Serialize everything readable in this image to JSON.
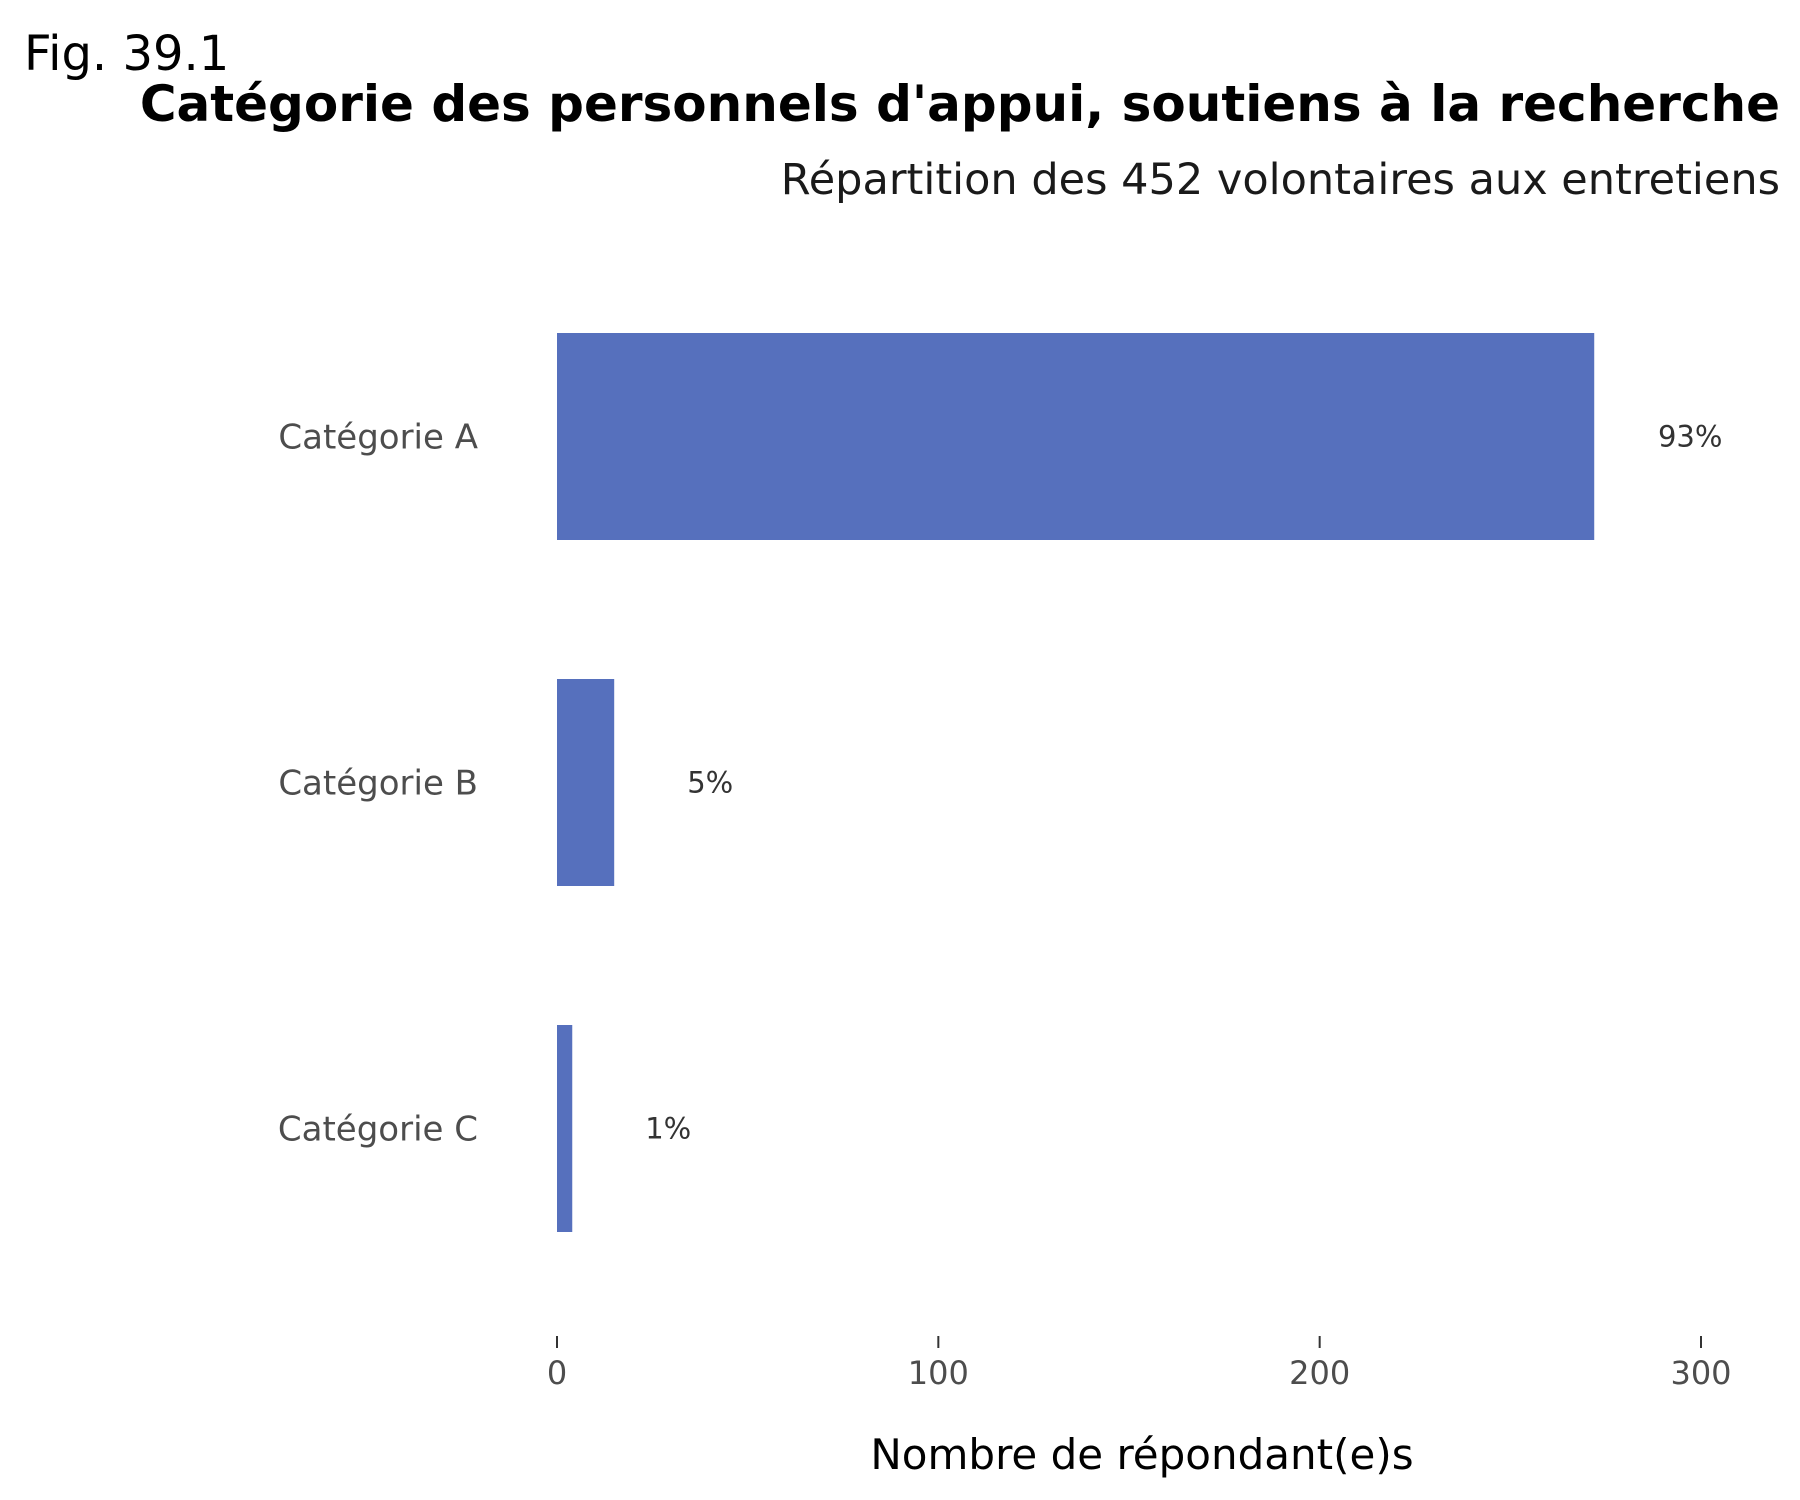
{
  "figure_label": "Fig. 39.1",
  "chart_data": {
    "type": "bar",
    "orientation": "horizontal",
    "title": "Catégorie des personnels d'appui, soutiens à la recherche",
    "subtitle": "Répartition des 452 volontaires aux entretiens",
    "xlabel": "Nombre de répondant(e)s",
    "ylabel": "",
    "categories": [
      "Catégorie A",
      "Catégorie B",
      "Catégorie C"
    ],
    "values": [
      272,
      15,
      4
    ],
    "data_labels": [
      "93%",
      "5%",
      "1%"
    ],
    "xlim": [
      0,
      300
    ],
    "xticks": [
      0,
      100,
      200,
      300
    ],
    "xtick_labels": [
      "0",
      "100",
      "200",
      "300"
    ],
    "grid": false,
    "legend": "none",
    "bar_color": "#5670bd"
  }
}
